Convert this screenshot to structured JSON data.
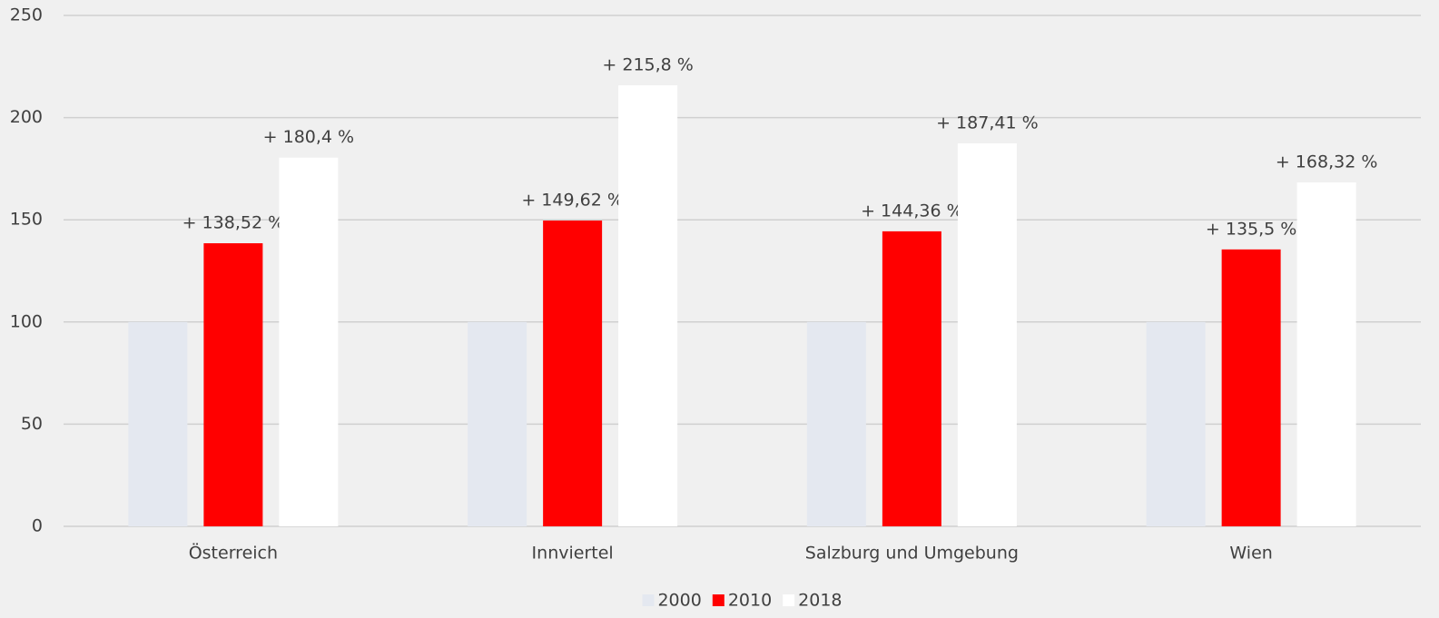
{
  "chart_data": {
    "type": "bar",
    "categories": [
      "Österreich",
      "Innviertel",
      "Salzburg und Umgebung",
      "Wien"
    ],
    "series": [
      {
        "name": "2000",
        "color": "#e4e8f0",
        "values": [
          100,
          100,
          100,
          100
        ]
      },
      {
        "name": "2010",
        "color": "#ff0000",
        "values": [
          138.52,
          149.62,
          144.36,
          135.5
        ],
        "value_labels": [
          "+ 138,52 %",
          "+ 149,62 %",
          "+ 144,36 %",
          "+ 135,5 %"
        ]
      },
      {
        "name": "2018",
        "color": "#ffffff",
        "values": [
          180.4,
          215.8,
          187.41,
          168.32
        ],
        "value_labels": [
          "+ 180,4 %",
          "+ 215,8 %",
          "+ 187,41 %",
          "+ 168,32 %"
        ]
      }
    ],
    "ylim": [
      0,
      250
    ],
    "yticks": [
      0,
      50,
      100,
      150,
      200,
      250
    ],
    "grid": true,
    "legend": "bottom"
  }
}
